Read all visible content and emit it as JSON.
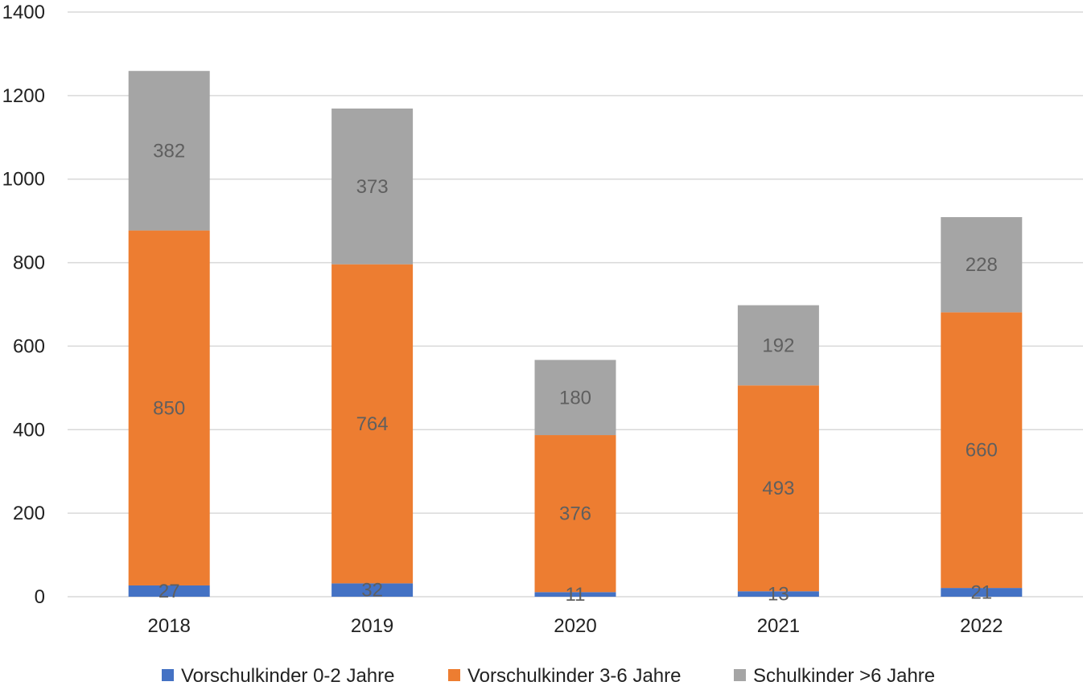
{
  "chart_data": {
    "type": "bar",
    "stacked": true,
    "categories": [
      "2018",
      "2019",
      "2020",
      "2021",
      "2022"
    ],
    "series": [
      {
        "name": "Vorschulkinder 0-2 Jahre",
        "color": "#4472c4",
        "values": [
          27,
          32,
          11,
          13,
          21
        ]
      },
      {
        "name": "Vorschulkinder 3-6 Jahre",
        "color": "#ed7d31",
        "values": [
          850,
          764,
          376,
          493,
          660
        ]
      },
      {
        "name": "Schulkinder >6 Jahre",
        "color": "#a5a5a5",
        "values": [
          382,
          373,
          180,
          192,
          228
        ]
      }
    ],
    "y_ticks": [
      "0",
      "200",
      "400",
      "600",
      "800",
      "1000",
      "1200",
      "1400"
    ],
    "ylim": [
      0,
      1400
    ],
    "grid": true,
    "legend_position": "bottom",
    "data_labels": true
  }
}
